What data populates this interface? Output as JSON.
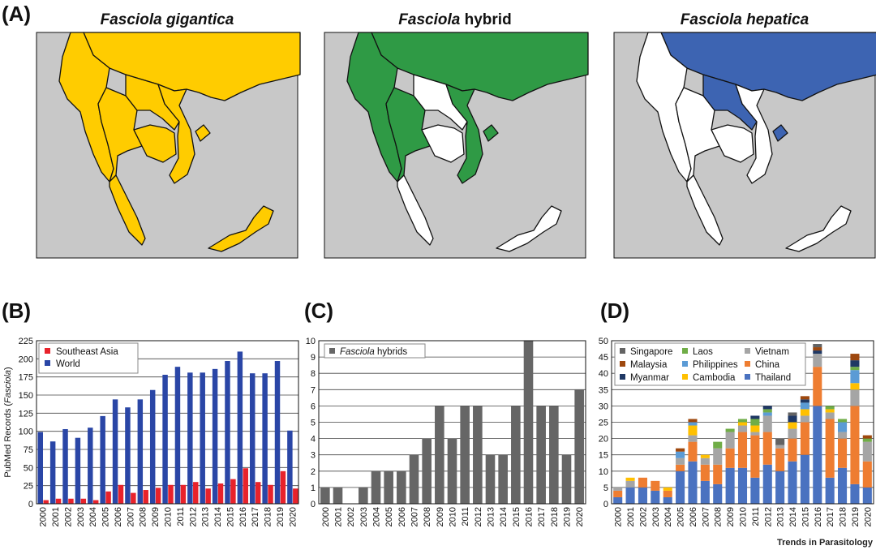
{
  "panel_labels": {
    "a": "(A)",
    "b": "(B)",
    "c": "(C)",
    "d": "(D)"
  },
  "maps": [
    {
      "genus": "Fasciola",
      "species": "gigantica",
      "species_italic": true,
      "fill": "#ffcc00"
    },
    {
      "genus": "Fasciola",
      "species": "hybrid",
      "species_italic": false,
      "fill": "#2f9a45"
    },
    {
      "genus": "Fasciola",
      "species": "hepatica",
      "species_italic": true,
      "fill": "#3d64b2"
    }
  ],
  "map_colors": {
    "sea": "#c8c8c8",
    "absent": "#ffffff"
  },
  "credit": "Trends in Parasitology",
  "chart_data": [
    {
      "type": "bar",
      "ylabel_prefix": "PubMed Records (",
      "ylabel_italic": "Fasciola",
      "ylabel_suffix": ")",
      "ylim": [
        0,
        225
      ],
      "yticks": [
        0,
        25,
        50,
        75,
        100,
        125,
        150,
        175,
        200,
        225
      ],
      "grid": true,
      "legend": "top-left",
      "categories": [
        "2000",
        "2001",
        "2002",
        "2003",
        "2004",
        "2005",
        "2006",
        "2007",
        "2008",
        "2009",
        "2010",
        "2011",
        "2012",
        "2013",
        "2014",
        "2015",
        "2016",
        "2017",
        "2018",
        "2019",
        "2020"
      ],
      "series": [
        {
          "name": "Southeast Asia",
          "color": "#e8222b",
          "values": [
            5,
            7,
            7,
            7,
            5,
            17,
            26,
            15,
            19,
            22,
            26,
            26,
            30,
            21,
            28,
            34,
            49,
            30,
            26,
            45,
            21
          ]
        },
        {
          "name": "World",
          "color": "#2a46a6",
          "values": [
            99,
            86,
            103,
            91,
            105,
            121,
            144,
            133,
            144,
            157,
            178,
            189,
            181,
            181,
            186,
            197,
            210,
            180,
            180,
            197,
            101
          ]
        }
      ]
    },
    {
      "type": "bar",
      "ylim": [
        0,
        10
      ],
      "yticks": [
        0,
        1,
        2,
        3,
        4,
        5,
        6,
        7,
        8,
        9,
        10
      ],
      "grid": true,
      "legend": "top-left",
      "categories": [
        "2000",
        "2001",
        "2002",
        "2003",
        "2004",
        "2005",
        "2006",
        "2007",
        "2008",
        "2009",
        "2010",
        "2011",
        "2012",
        "2013",
        "2014",
        "2015",
        "2016",
        "2017",
        "2018",
        "2019",
        "2020"
      ],
      "series": [
        {
          "name_italic": "Fasciola",
          "name": "hybrids",
          "color": "#666666",
          "values": [
            1,
            1,
            0,
            1,
            2,
            2,
            2,
            3,
            4,
            6,
            4,
            6,
            6,
            3,
            3,
            6,
            10,
            6,
            6,
            3,
            7
          ]
        }
      ]
    },
    {
      "type": "bar",
      "stacked": true,
      "ylim": [
        0,
        50
      ],
      "yticks": [
        0,
        5,
        10,
        15,
        20,
        25,
        30,
        35,
        40,
        45,
        50
      ],
      "grid": true,
      "legend": "top-left",
      "categories": [
        "2000",
        "2001",
        "2002",
        "2003",
        "2004",
        "2005",
        "2006",
        "2007",
        "2008",
        "2009",
        "2010",
        "2011",
        "2012",
        "2013",
        "2014",
        "2015",
        "2016",
        "2017",
        "2018",
        "2019",
        "2020"
      ],
      "series": [
        {
          "name": "Thailand",
          "color": "#4a72c0",
          "values": [
            2,
            5,
            5,
            4,
            2,
            10,
            13,
            7,
            6,
            11,
            11,
            8,
            12,
            10,
            13,
            15,
            30,
            8,
            11,
            6,
            5
          ]
        },
        {
          "name": "China",
          "color": "#ee7d31",
          "values": [
            2,
            0,
            3,
            3,
            2,
            2,
            6,
            5,
            6,
            6,
            11,
            13,
            10,
            7,
            7,
            10,
            12,
            18,
            9,
            24,
            8
          ]
        },
        {
          "name": "Vietnam",
          "color": "#a5a5a5",
          "values": [
            1,
            2,
            0,
            0,
            0,
            2,
            2,
            2,
            5,
            5,
            2,
            1,
            5,
            1,
            3,
            2,
            4,
            2,
            2,
            5,
            6
          ]
        },
        {
          "name": "Cambodia",
          "color": "#ffc000",
          "values": [
            0,
            1,
            0,
            0,
            1,
            0,
            3,
            1,
            0,
            0,
            1,
            2,
            0,
            0,
            2,
            2,
            0,
            1,
            0,
            2,
            0
          ]
        },
        {
          "name": "Philippines",
          "color": "#5b9bd5",
          "values": [
            0,
            0,
            0,
            0,
            0,
            2,
            1,
            0,
            0,
            0,
            0,
            0,
            1,
            0,
            0,
            2,
            0,
            0,
            3,
            4,
            0
          ]
        },
        {
          "name": "Laos",
          "color": "#70ad47",
          "values": [
            0,
            0,
            0,
            0,
            0,
            0,
            0,
            0,
            2,
            1,
            1,
            2,
            1,
            0,
            0,
            0,
            0,
            1,
            1,
            1,
            1
          ]
        },
        {
          "name": "Myanmar",
          "color": "#1f3864",
          "values": [
            0,
            0,
            0,
            0,
            0,
            0,
            0,
            0,
            0,
            0,
            0,
            1,
            1,
            0,
            2,
            1,
            1,
            0,
            0,
            2,
            0
          ]
        },
        {
          "name": "Malaysia",
          "color": "#9e480e",
          "values": [
            0,
            0,
            0,
            0,
            0,
            1,
            1,
            0,
            0,
            0,
            0,
            0,
            0,
            0,
            0,
            1,
            1,
            0,
            0,
            2,
            1
          ]
        },
        {
          "name": "Singapore",
          "color": "#636363",
          "values": [
            0,
            0,
            0,
            0,
            0,
            0,
            0,
            0,
            0,
            0,
            0,
            0,
            0,
            2,
            1,
            0,
            1,
            0,
            0,
            0,
            0
          ]
        }
      ],
      "legend_order": [
        "Singapore",
        "Malaysia",
        "Myanmar",
        "Laos",
        "Philippines",
        "Cambodia",
        "Vietnam",
        "China",
        "Thailand"
      ]
    }
  ]
}
